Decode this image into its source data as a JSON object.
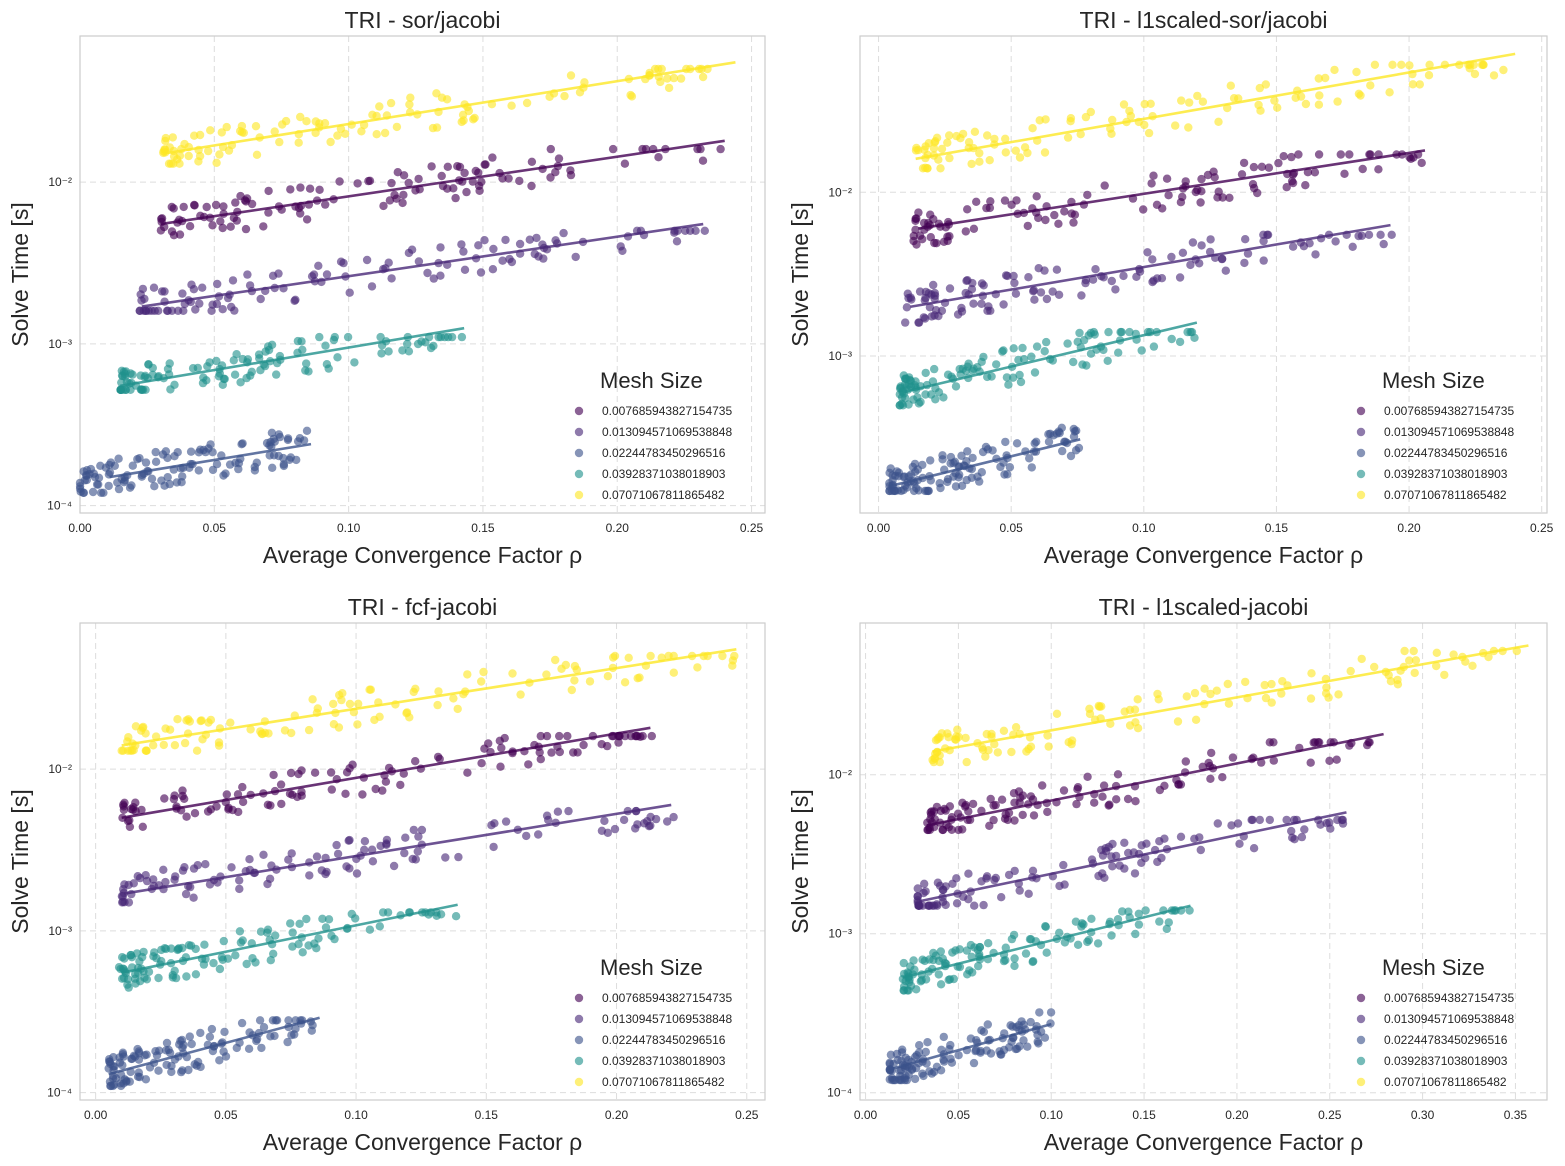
{
  "colors": {
    "0.007685943827154735": "#440154",
    "0.013094571069538848": "#482878",
    "0.02244783450296516": "#3b528b",
    "0.03928371038018903": "#21918c",
    "0.07071067811865482": "#fde725"
  },
  "legend_title": "Mesh Size",
  "legend_entries": [
    "0.007685943827154735",
    "0.013094571069538848",
    "0.02244783450296516",
    "0.03928371038018903",
    "0.07071067811865482"
  ],
  "ylabel": "Solve Time [s]",
  "xlabel": "Average Convergence Factor ρ",
  "chart_data": [
    {
      "type": "scatter",
      "title": "TRI - sor/jacobi",
      "xlabel": "Average Convergence Factor ρ",
      "ylabel": "Solve Time [s]",
      "yscale": "log",
      "xlim": [
        0.0,
        0.255
      ],
      "ylim": [
        9e-05,
        0.08
      ],
      "xticks": [
        "0.00",
        "0.05",
        "0.10",
        "0.15",
        "0.20",
        "0.25"
      ],
      "yticks": [
        "10⁻⁴",
        "10⁻³",
        "10⁻²"
      ],
      "series": [
        {
          "name": "0.007685943827154735",
          "x_range": [
            0.03,
            0.24
          ],
          "y_range": [
            0.0045,
            0.016
          ],
          "fit": [
            [
              0.03,
              0.0055
            ],
            [
              0.24,
              0.018
            ]
          ]
        },
        {
          "name": "0.013094571069538848",
          "x_range": [
            0.022,
            0.235
          ],
          "y_range": [
            0.0016,
            0.005
          ],
          "fit": [
            [
              0.023,
              0.0017
            ],
            [
              0.232,
              0.0055
            ]
          ]
        },
        {
          "name": "0.02244783450296516",
          "x_range": [
            0.0,
            0.086
          ],
          "y_range": [
            0.00012,
            0.00029
          ],
          "fit": [
            [
              0.011,
              0.00015
            ],
            [
              0.086,
              0.00024
            ]
          ]
        },
        {
          "name": "0.03928371038018903",
          "x_range": [
            0.015,
            0.143
          ],
          "y_range": [
            0.00052,
            0.0011
          ],
          "fit": [
            [
              0.015,
              0.00055
            ],
            [
              0.143,
              0.00125
            ]
          ]
        },
        {
          "name": "0.07071067811865482",
          "x_range": [
            0.031,
            0.244
          ],
          "y_range": [
            0.013,
            0.05
          ],
          "fit": [
            [
              0.031,
              0.015
            ],
            [
              0.244,
              0.055
            ]
          ]
        }
      ]
    },
    {
      "type": "scatter",
      "title": "TRI - l1scaled-sor/jacobi",
      "xlabel": "Average Convergence Factor ρ",
      "ylabel": "Solve Time [s]",
      "yscale": "log",
      "xlim": [
        -0.007,
        0.252
      ],
      "ylim": [
        0.00011,
        0.09
      ],
      "xticks": [
        "0.00",
        "0.05",
        "0.10",
        "0.15",
        "0.20",
        "0.25"
      ],
      "yticks": [
        "10⁻³",
        "10⁻²"
      ],
      "series": [
        {
          "name": "0.007685943827154735",
          "x_range": [
            0.013,
            0.205
          ],
          "y_range": [
            0.0048,
            0.017
          ],
          "fit": [
            [
              0.015,
              0.006
            ],
            [
              0.206,
              0.018
            ]
          ]
        },
        {
          "name": "0.013094571069538848",
          "x_range": [
            0.01,
            0.195
          ],
          "y_range": [
            0.0016,
            0.0055
          ],
          "fit": [
            [
              0.012,
              0.002
            ],
            [
              0.193,
              0.0063
            ]
          ]
        },
        {
          "name": "0.02244783450296516",
          "x_range": [
            0.004,
            0.077
          ],
          "y_range": [
            0.00015,
            0.0004
          ],
          "fit": [
            [
              0.004,
              0.00016
            ],
            [
              0.076,
              0.00031
            ]
          ]
        },
        {
          "name": "0.03928371038018903",
          "x_range": [
            0.008,
            0.121
          ],
          "y_range": [
            0.0005,
            0.0014
          ],
          "fit": [
            [
              0.009,
              0.0006
            ],
            [
              0.12,
              0.0016
            ]
          ]
        },
        {
          "name": "0.07071067811865482",
          "x_range": [
            0.014,
            0.24
          ],
          "y_range": [
            0.014,
            0.06
          ],
          "fit": [
            [
              0.014,
              0.016
            ],
            [
              0.24,
              0.07
            ]
          ]
        }
      ]
    },
    {
      "type": "scatter",
      "title": "TRI - fcf-jacobi",
      "xlabel": "Average Convergence Factor ρ",
      "ylabel": "Solve Time [s]",
      "yscale": "log",
      "xlim": [
        -0.006,
        0.257
      ],
      "ylim": [
        9e-05,
        0.08
      ],
      "xticks": [
        "0.00",
        "0.05",
        "0.10",
        "0.15",
        "0.20",
        "0.25"
      ],
      "yticks": [
        "10⁻⁴",
        "10⁻³",
        "10⁻²"
      ],
      "series": [
        {
          "name": "0.007685943827154735",
          "x_range": [
            0.01,
            0.215
          ],
          "y_range": [
            0.0044,
            0.016
          ],
          "fit": [
            [
              0.01,
              0.005
            ],
            [
              0.213,
              0.018
            ]
          ]
        },
        {
          "name": "0.013094571069538848",
          "x_range": [
            0.01,
            0.222
          ],
          "y_range": [
            0.0015,
            0.0055
          ],
          "fit": [
            [
              0.011,
              0.0017
            ],
            [
              0.221,
              0.006
            ]
          ]
        },
        {
          "name": "0.02244783450296516",
          "x_range": [
            0.005,
            0.086
          ],
          "y_range": [
            0.00011,
            0.00028
          ],
          "fit": [
            [
              0.005,
              0.00013
            ],
            [
              0.086,
              0.00029
            ]
          ]
        },
        {
          "name": "0.03928371038018903",
          "x_range": [
            0.009,
            0.139
          ],
          "y_range": [
            0.00042,
            0.0013
          ],
          "fit": [
            [
              0.01,
              0.00055
            ],
            [
              0.139,
              0.00145
            ]
          ]
        },
        {
          "name": "0.07071067811865482",
          "x_range": [
            0.01,
            0.246
          ],
          "y_range": [
            0.013,
            0.05
          ],
          "fit": [
            [
              0.01,
              0.014
            ],
            [
              0.246,
              0.055
            ]
          ]
        }
      ]
    },
    {
      "type": "scatter",
      "title": "TRI - l1scaled-jacobi",
      "xlabel": "Average Convergence Factor ρ",
      "ylabel": "Solve Time [s]",
      "yscale": "log",
      "xlim": [
        -0.003,
        0.367
      ],
      "ylim": [
        9e-05,
        0.09
      ],
      "xticks": [
        "0.00",
        "0.05",
        "0.10",
        "0.15",
        "0.20",
        "0.25",
        "0.30",
        "0.35"
      ],
      "yticks": [
        "10⁻⁴",
        "10⁻³",
        "10⁻²"
      ],
      "series": [
        {
          "name": "0.007685943827154735",
          "x_range": [
            0.033,
            0.28
          ],
          "y_range": [
            0.0045,
            0.016
          ],
          "fit": [
            [
              0.033,
              0.0048
            ],
            [
              0.279,
              0.018
            ]
          ]
        },
        {
          "name": "0.013094571069538848",
          "x_range": [
            0.028,
            0.26
          ],
          "y_range": [
            0.0015,
            0.0052
          ],
          "fit": [
            [
              0.029,
              0.0016
            ],
            [
              0.259,
              0.0058
            ]
          ]
        },
        {
          "name": "0.02244783450296516",
          "x_range": [
            0.013,
            0.1
          ],
          "y_range": [
            0.00012,
            0.00032
          ],
          "fit": [
            [
              0.013,
              0.00014
            ],
            [
              0.1,
              0.00027
            ]
          ]
        },
        {
          "name": "0.03928371038018903",
          "x_range": [
            0.02,
            0.175
          ],
          "y_range": [
            0.00044,
            0.0014
          ],
          "fit": [
            [
              0.02,
              0.00053
            ],
            [
              0.175,
              0.0015
            ]
          ]
        },
        {
          "name": "0.07071067811865482",
          "x_range": [
            0.036,
            0.357
          ],
          "y_range": [
            0.012,
            0.06
          ],
          "fit": [
            [
              0.036,
              0.014
            ],
            [
              0.357,
              0.065
            ]
          ]
        }
      ]
    }
  ]
}
